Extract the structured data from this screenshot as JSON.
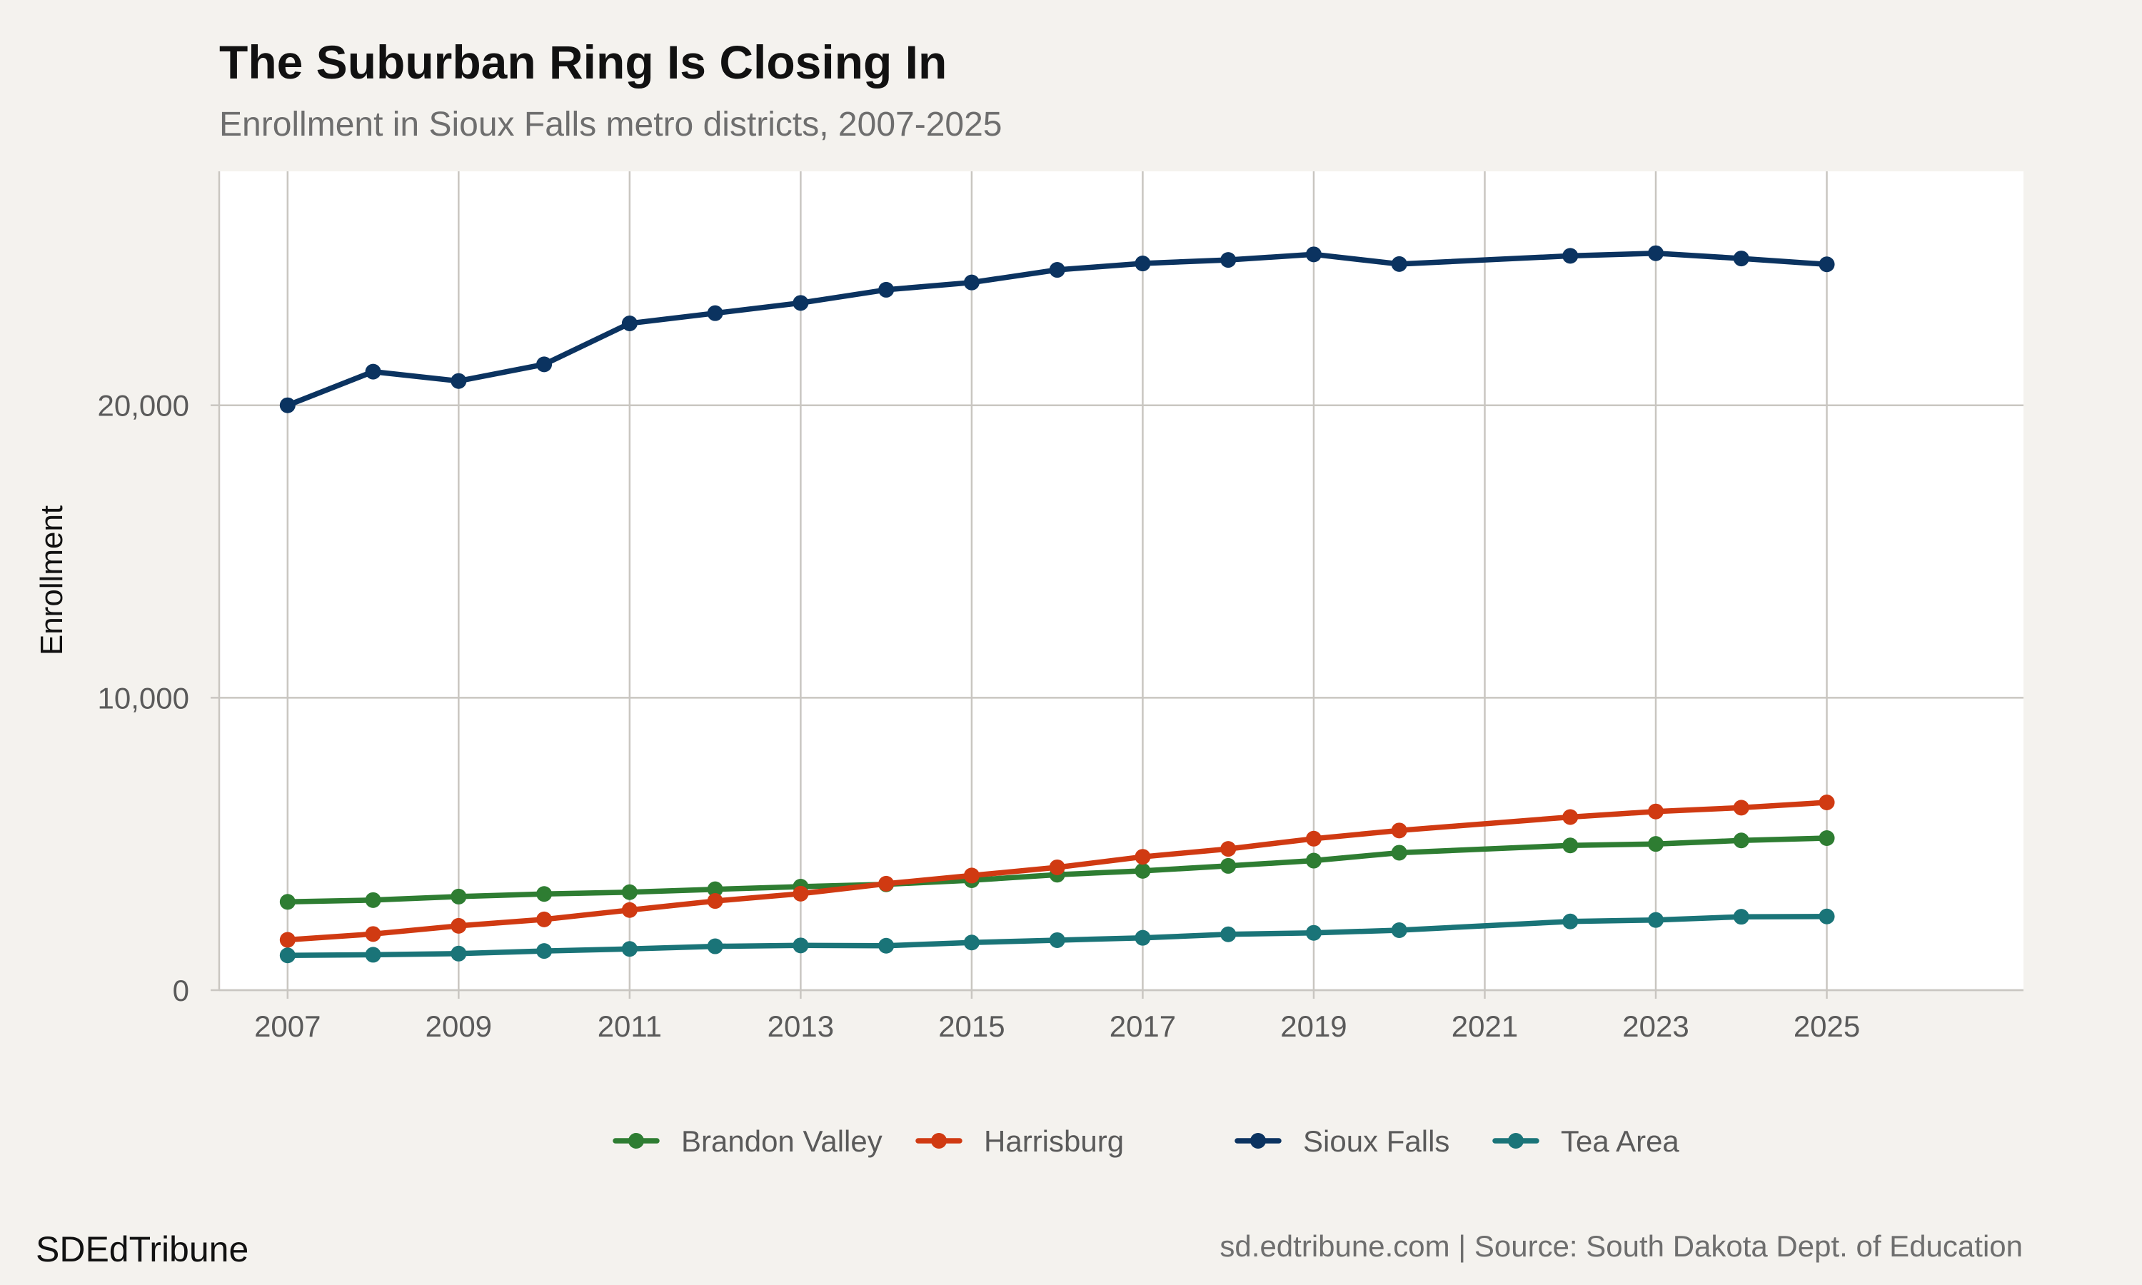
{
  "chart_data": {
    "type": "line",
    "title": "The Suburban Ring Is Closing In",
    "subtitle": "Enrollment in Sioux Falls metro districts, 2007-2025",
    "xlabel": "",
    "ylabel": "Enrollment",
    "xlim": [
      2006.2,
      2027.3
    ],
    "ylim": [
      0,
      28000
    ],
    "x_ticks": [
      2007,
      2009,
      2011,
      2013,
      2015,
      2017,
      2019,
      2021,
      2023,
      2025
    ],
    "y_ticks": [
      0,
      10000,
      20000
    ],
    "y_tick_labels": [
      "0",
      "10,000",
      "20,000"
    ],
    "grid": true,
    "legend_position": "bottom",
    "series": [
      {
        "name": "Brandon Valley",
        "color": "#2e7d32",
        "x": [
          2007,
          2008,
          2009,
          2010,
          2011,
          2012,
          2013,
          2014,
          2015,
          2016,
          2017,
          2018,
          2019,
          2020,
          2022,
          2023,
          2024,
          2025
        ],
        "values": [
          3020,
          3080,
          3200,
          3290,
          3350,
          3450,
          3540,
          3620,
          3760,
          3950,
          4080,
          4250,
          4430,
          4700,
          4950,
          5000,
          5120,
          5200
        ]
      },
      {
        "name": "Harrisburg",
        "color": "#d03a12",
        "x": [
          2007,
          2008,
          2009,
          2010,
          2011,
          2012,
          2013,
          2014,
          2015,
          2016,
          2017,
          2018,
          2019,
          2020,
          2022,
          2023,
          2024,
          2025
        ],
        "values": [
          1720,
          1920,
          2200,
          2420,
          2740,
          3050,
          3300,
          3640,
          3920,
          4200,
          4560,
          4830,
          5180,
          5460,
          5920,
          6110,
          6240,
          6420
        ]
      },
      {
        "name": "Sioux Falls",
        "color": "#0b3360",
        "x": [
          2007,
          2008,
          2009,
          2010,
          2011,
          2012,
          2013,
          2014,
          2015,
          2016,
          2017,
          2018,
          2019,
          2020,
          2022,
          2023,
          2024,
          2025
        ],
        "values": [
          20000,
          21150,
          20830,
          21400,
          22800,
          23150,
          23500,
          23950,
          24200,
          24630,
          24850,
          24970,
          25160,
          24830,
          25110,
          25200,
          25020,
          24820
        ]
      },
      {
        "name": "Tea Area",
        "color": "#1a7478",
        "x": [
          2007,
          2008,
          2009,
          2010,
          2011,
          2012,
          2013,
          2014,
          2015,
          2016,
          2017,
          2018,
          2019,
          2020,
          2022,
          2023,
          2024,
          2025
        ],
        "values": [
          1190,
          1210,
          1250,
          1340,
          1410,
          1500,
          1530,
          1520,
          1630,
          1710,
          1790,
          1910,
          1960,
          2050,
          2350,
          2400,
          2510,
          2520
        ]
      }
    ]
  },
  "footer": {
    "brand": "SDEdTribune",
    "caption": "sd.edtribune.com | Source: South Dakota Dept. of Education"
  }
}
